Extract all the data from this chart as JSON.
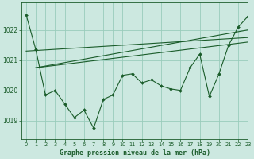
{
  "title": "Graphe pression niveau de la mer (hPa)",
  "background_color": "#cce8e0",
  "grid_color": "#99ccbb",
  "line_color": "#1a5c2a",
  "marker_color": "#1a5c2a",
  "xlim": [
    -0.5,
    23
  ],
  "ylim": [
    1018.4,
    1022.9
  ],
  "yticks": [
    1019,
    1020,
    1021,
    1022
  ],
  "xticks": [
    0,
    1,
    2,
    3,
    4,
    5,
    6,
    7,
    8,
    9,
    10,
    11,
    12,
    13,
    14,
    15,
    16,
    17,
    18,
    19,
    20,
    21,
    22,
    23
  ],
  "series_jagged": [
    1022.5,
    1021.35,
    1019.85,
    1020.0,
    1019.55,
    1019.1,
    1019.35,
    1018.75,
    1019.7,
    1019.85,
    1020.5,
    1020.55,
    1020.25,
    1020.35,
    1020.15,
    1020.05,
    1020.0,
    1020.75,
    1021.2,
    1019.8,
    1020.55,
    1021.5,
    1022.1,
    1022.45
  ],
  "series_line1_x": [
    0,
    23
  ],
  "series_line1_y": [
    1021.3,
    1021.75
  ],
  "series_line2_x": [
    1,
    23
  ],
  "series_line2_y": [
    1020.75,
    1022.0
  ],
  "series_line3_x": [
    1,
    23
  ],
  "series_line3_y": [
    1020.75,
    1021.6
  ]
}
